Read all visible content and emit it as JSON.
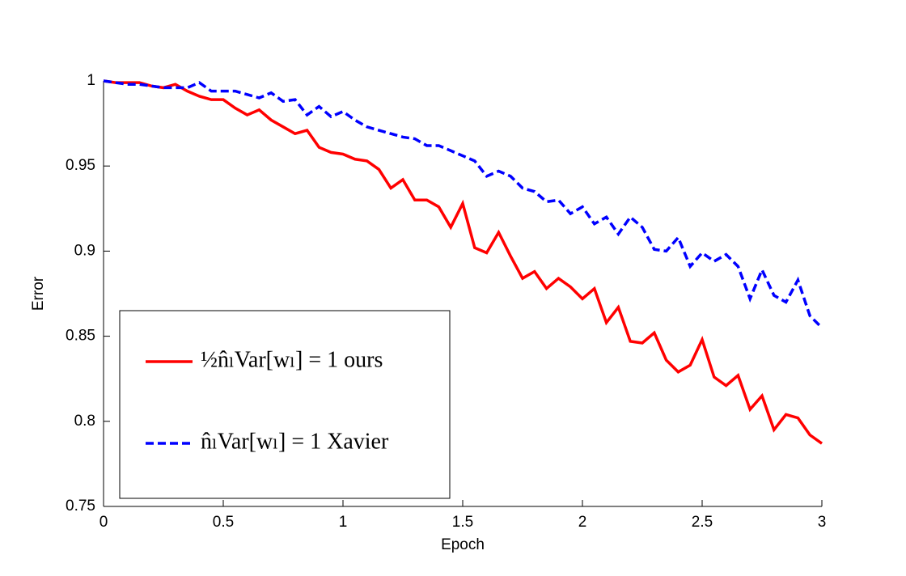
{
  "chart_data": {
    "type": "line",
    "x_label": "Epoch",
    "y_label": "Error",
    "x": [
      0,
      0.05,
      0.1,
      0.15,
      0.2,
      0.25,
      0.3,
      0.35,
      0.4,
      0.45,
      0.5,
      0.55,
      0.6,
      0.65,
      0.7,
      0.75,
      0.8,
      0.85,
      0.9,
      0.95,
      1,
      1.05,
      1.1,
      1.15,
      1.2,
      1.25,
      1.3,
      1.35,
      1.4,
      1.45,
      1.5,
      1.55,
      1.6,
      1.65,
      1.7,
      1.75,
      1.8,
      1.85,
      1.9,
      1.95,
      2,
      2.05,
      2.1,
      2.15,
      2.2,
      2.25,
      2.3,
      2.35,
      2.4,
      2.45,
      2.5,
      2.55,
      2.6,
      2.65,
      2.7,
      2.75,
      2.8,
      2.85,
      2.9,
      2.95,
      3
    ],
    "series": [
      {
        "name": "½n̂ₗVar[wₗ] = 1  ours",
        "color": "#ff0000",
        "dashed": false,
        "values": [
          1.0,
          0.999,
          0.999,
          0.999,
          0.997,
          0.996,
          0.998,
          0.994,
          0.991,
          0.989,
          0.989,
          0.984,
          0.98,
          0.983,
          0.977,
          0.973,
          0.969,
          0.971,
          0.961,
          0.958,
          0.957,
          0.954,
          0.953,
          0.948,
          0.937,
          0.942,
          0.93,
          0.93,
          0.926,
          0.914,
          0.928,
          0.902,
          0.899,
          0.911,
          0.897,
          0.884,
          0.888,
          0.878,
          0.884,
          0.879,
          0.872,
          0.878,
          0.858,
          0.867,
          0.847,
          0.846,
          0.852,
          0.836,
          0.829,
          0.833,
          0.848,
          0.826,
          0.821,
          0.827,
          0.807,
          0.815,
          0.795,
          0.804,
          0.802,
          0.792,
          0.787
        ]
      },
      {
        "name": "n̂ₗVar[wₗ] = 1  Xavier",
        "color": "#0000ff",
        "dashed": true,
        "values": [
          1.0,
          0.999,
          0.998,
          0.998,
          0.997,
          0.996,
          0.996,
          0.996,
          0.999,
          0.994,
          0.994,
          0.994,
          0.992,
          0.99,
          0.993,
          0.988,
          0.989,
          0.98,
          0.985,
          0.979,
          0.982,
          0.977,
          0.973,
          0.971,
          0.969,
          0.967,
          0.966,
          0.962,
          0.962,
          0.959,
          0.956,
          0.953,
          0.944,
          0.947,
          0.944,
          0.937,
          0.935,
          0.929,
          0.93,
          0.922,
          0.926,
          0.916,
          0.92,
          0.91,
          0.92,
          0.914,
          0.901,
          0.9,
          0.908,
          0.891,
          0.899,
          0.894,
          0.898,
          0.891,
          0.872,
          0.889,
          0.874,
          0.87,
          0.883,
          0.862,
          0.855
        ]
      }
    ],
    "xlim": [
      0,
      3
    ],
    "ylim": [
      0.75,
      1
    ],
    "xticks": [
      0,
      0.5,
      1,
      1.5,
      2,
      2.5,
      3
    ],
    "yticks": [
      0.75,
      0.8,
      0.85,
      0.9,
      0.95,
      1
    ],
    "grid": false,
    "legend": "lower left"
  }
}
